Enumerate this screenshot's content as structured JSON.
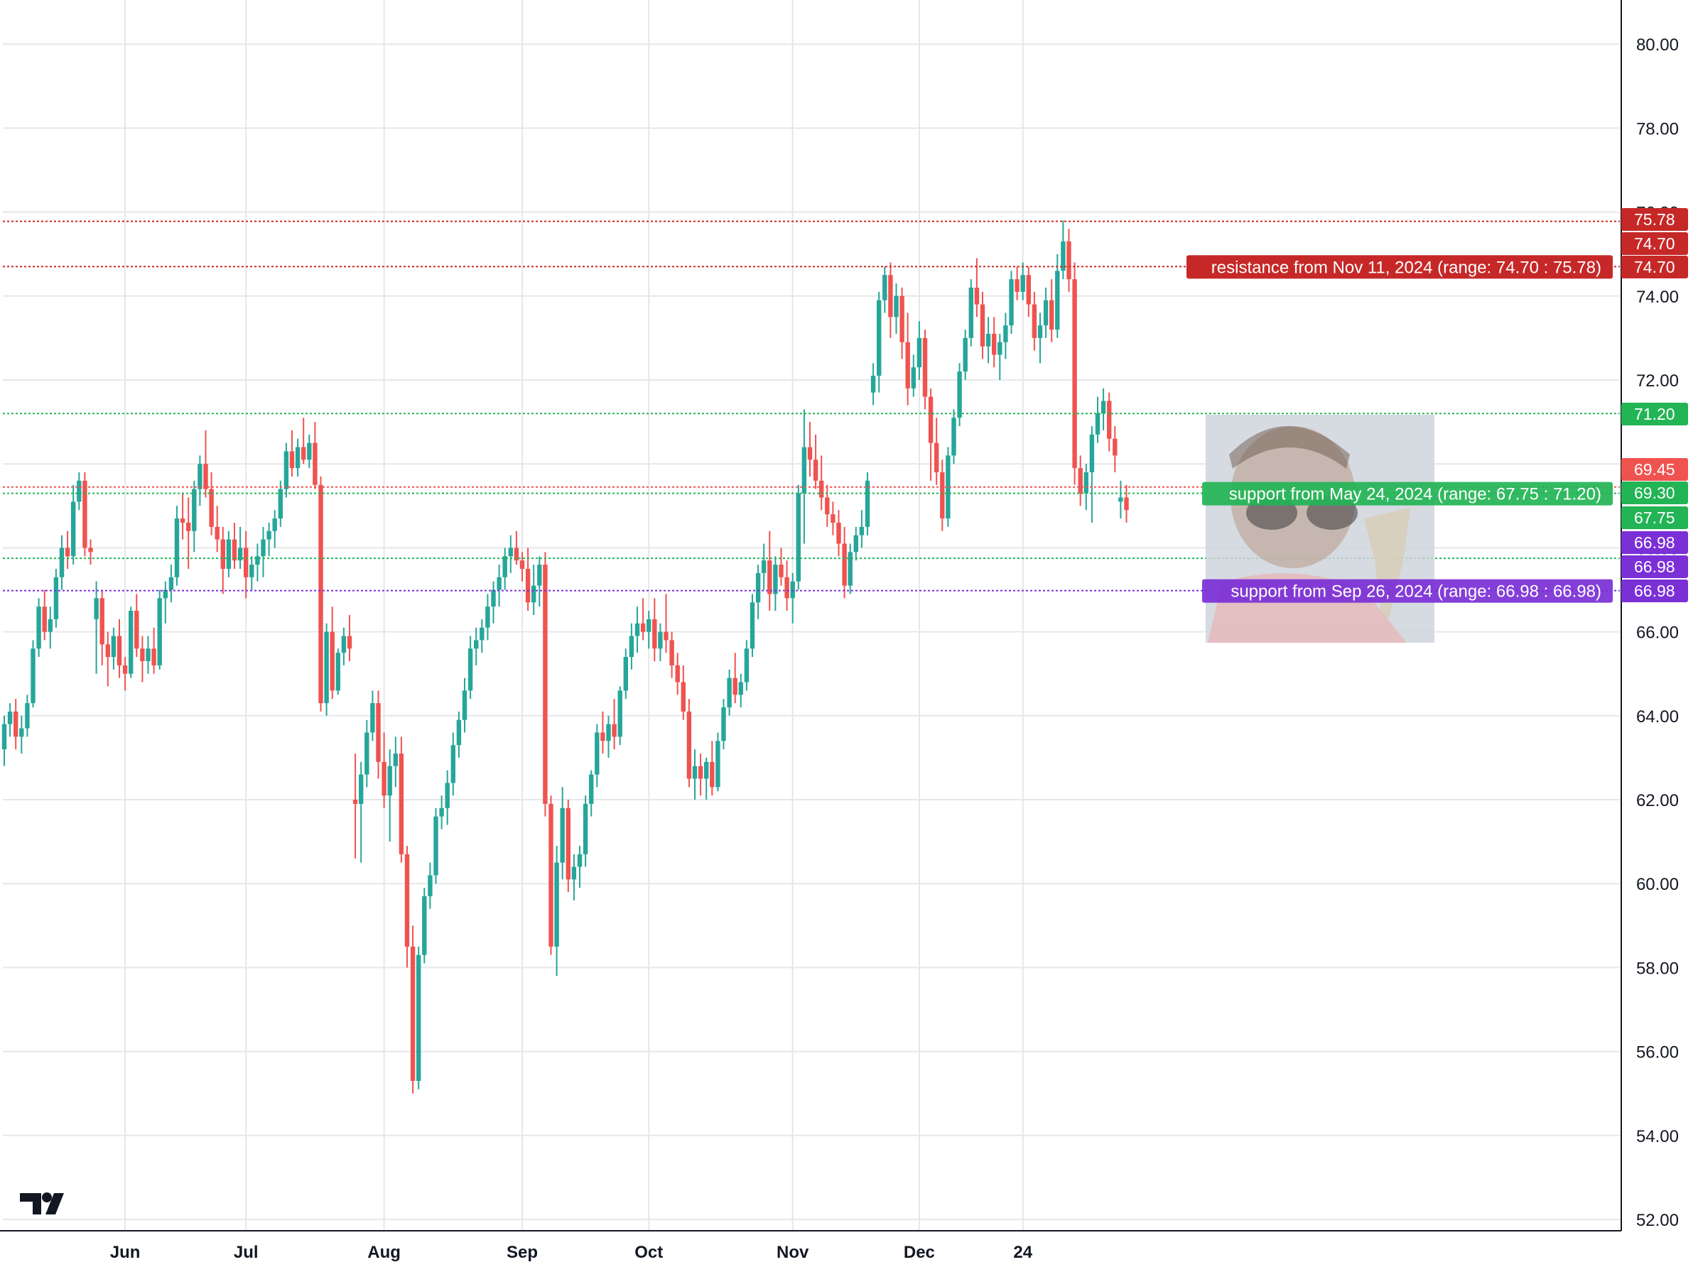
{
  "chart_data": {
    "type": "candlestick",
    "y_axis": {
      "range": [
        51.5,
        81.0
      ],
      "ticks": [
        "52.00",
        "54.00",
        "56.00",
        "58.00",
        "60.00",
        "62.00",
        "64.00",
        "66.00",
        "68.00",
        "70.00",
        "72.00",
        "74.00",
        "76.00",
        "78.00",
        "80.00"
      ],
      "tick_values": [
        52,
        54,
        56,
        58,
        60,
        62,
        64,
        66,
        68,
        70,
        72,
        74,
        76,
        78,
        80
      ]
    },
    "x_axis": {
      "labels": [
        {
          "text": "Jun",
          "index": 21
        },
        {
          "text": "Jul",
          "index": 42
        },
        {
          "text": "Aug",
          "index": 66
        },
        {
          "text": "Sep",
          "index": 90
        },
        {
          "text": "Oct",
          "index": 112
        },
        {
          "text": "Nov",
          "index": 137
        },
        {
          "text": "Dec",
          "index": 159
        },
        {
          "text": "24",
          "index": 177
        }
      ],
      "bar_count": 250
    },
    "grid": true,
    "colors": {
      "up": "#26a69a",
      "down": "#ef5350",
      "resistance": "#c62828",
      "support": "#22b455",
      "support_alt": "#7b2fd6"
    },
    "levels": [
      {
        "price": 75.78,
        "label": "75.78",
        "color": "#c62828",
        "style": "dotted"
      },
      {
        "price": 74.7,
        "label": "74.70",
        "color": "#c62828",
        "style": "dotted"
      },
      {
        "price": 71.2,
        "label": "71.20",
        "color": "#22b455",
        "style": "dotted"
      },
      {
        "price": 69.45,
        "label": "69.45",
        "color": "#ef5350",
        "style": "dotted"
      },
      {
        "price": 69.3,
        "label": "69.30",
        "color": "#22b455",
        "style": "dotted"
      },
      {
        "price": 67.75,
        "label": "67.75",
        "color": "#22b455",
        "style": "dotted"
      },
      {
        "price": 66.98,
        "label": "66.98",
        "color": "#7b2fd6",
        "style": "dotted"
      }
    ],
    "extra_badges": [
      {
        "price": 74.7,
        "label": "74.70",
        "color": "#c62828"
      },
      {
        "price": 68.55,
        "label": "66.98",
        "color": "#7b2fd6"
      },
      {
        "price": 67.98,
        "label": "66.98",
        "color": "#7b2fd6"
      }
    ],
    "zone_labels": [
      {
        "text": "resistance from Nov 11, 2024 (range: 74.70 : 75.78)",
        "price": 74.7,
        "color": "#c62828"
      },
      {
        "text": "support from May 24, 2024 (range: 67.75 : 71.20)",
        "price": 69.3,
        "color": "#22b455"
      },
      {
        "text": "support from Sep 26, 2024 (range: 66.98 : 66.98)",
        "price": 66.98,
        "color": "#7b2fd6"
      }
    ],
    "candles": [
      [
        63.2,
        64.0,
        62.8,
        63.8
      ],
      [
        63.8,
        64.3,
        63.5,
        64.1
      ],
      [
        64.1,
        64.4,
        63.2,
        63.5
      ],
      [
        63.5,
        64.0,
        63.1,
        63.7
      ],
      [
        63.7,
        64.5,
        63.5,
        64.3
      ],
      [
        64.3,
        65.8,
        64.2,
        65.6
      ],
      [
        65.6,
        66.8,
        65.4,
        66.6
      ],
      [
        66.6,
        67.0,
        65.8,
        66.0
      ],
      [
        66.0,
        66.6,
        65.6,
        66.3
      ],
      [
        66.3,
        67.5,
        66.1,
        67.3
      ],
      [
        67.3,
        68.3,
        67.0,
        68.0
      ],
      [
        68.0,
        68.4,
        67.5,
        67.8
      ],
      [
        67.8,
        69.5,
        67.6,
        69.1
      ],
      [
        69.1,
        69.8,
        68.9,
        69.6
      ],
      [
        69.6,
        69.8,
        67.8,
        68.0
      ],
      [
        68.0,
        68.2,
        67.6,
        67.9
      ],
      [
        66.3,
        67.2,
        65.0,
        66.8
      ],
      [
        66.8,
        67.0,
        65.2,
        65.7
      ],
      [
        65.7,
        66.0,
        64.7,
        65.4
      ],
      [
        65.4,
        66.1,
        65.1,
        65.9
      ],
      [
        65.9,
        66.3,
        64.9,
        65.2
      ],
      [
        65.2,
        65.4,
        64.6,
        65.0
      ],
      [
        65.0,
        66.6,
        64.9,
        66.5
      ],
      [
        66.5,
        66.9,
        65.4,
        65.6
      ],
      [
        65.6,
        65.9,
        64.8,
        65.3
      ],
      [
        65.3,
        65.9,
        65.0,
        65.6
      ],
      [
        65.6,
        66.1,
        65.0,
        65.2
      ],
      [
        65.2,
        67.0,
        65.1,
        66.8
      ],
      [
        66.8,
        67.2,
        66.2,
        67.0
      ],
      [
        67.0,
        67.6,
        66.7,
        67.3
      ],
      [
        67.3,
        69.0,
        67.1,
        68.7
      ],
      [
        68.7,
        69.3,
        68.2,
        68.6
      ],
      [
        68.6,
        69.2,
        67.5,
        68.4
      ],
      [
        68.4,
        69.6,
        67.9,
        69.4
      ],
      [
        69.4,
        70.2,
        69.0,
        70.0
      ],
      [
        70.0,
        70.8,
        69.2,
        69.4
      ],
      [
        69.4,
        69.8,
        68.3,
        68.5
      ],
      [
        68.5,
        69.0,
        67.9,
        68.2
      ],
      [
        68.2,
        68.5,
        66.9,
        67.5
      ],
      [
        67.5,
        68.4,
        67.3,
        68.2
      ],
      [
        68.2,
        68.6,
        67.5,
        67.7
      ],
      [
        67.7,
        68.5,
        67.5,
        68.0
      ],
      [
        68.0,
        68.4,
        66.8,
        67.3
      ],
      [
        67.3,
        67.8,
        67.0,
        67.6
      ],
      [
        67.6,
        68.1,
        67.2,
        67.8
      ],
      [
        67.8,
        68.5,
        67.3,
        68.2
      ],
      [
        68.2,
        68.6,
        67.8,
        68.4
      ],
      [
        68.4,
        68.9,
        68.0,
        68.7
      ],
      [
        68.7,
        69.6,
        68.5,
        69.4
      ],
      [
        69.4,
        70.5,
        69.2,
        70.3
      ],
      [
        70.3,
        70.8,
        69.7,
        69.9
      ],
      [
        69.9,
        70.6,
        69.7,
        70.4
      ],
      [
        70.4,
        71.1,
        70.0,
        70.1
      ],
      [
        70.1,
        70.7,
        69.9,
        70.5
      ],
      [
        70.5,
        71.0,
        69.4,
        69.5
      ],
      [
        69.5,
        69.7,
        64.1,
        64.3
      ],
      [
        64.3,
        66.2,
        64.0,
        66.0
      ],
      [
        66.0,
        66.6,
        64.4,
        64.6
      ],
      [
        64.6,
        65.6,
        64.5,
        65.5
      ],
      [
        65.5,
        66.1,
        65.2,
        65.9
      ],
      [
        65.9,
        66.4,
        65.3,
        65.6
      ],
      [
        62.0,
        63.1,
        60.6,
        61.9
      ],
      [
        61.9,
        62.9,
        60.5,
        62.6
      ],
      [
        62.6,
        63.9,
        62.3,
        63.6
      ],
      [
        63.6,
        64.6,
        63.4,
        64.3
      ],
      [
        64.3,
        64.6,
        62.5,
        62.9
      ],
      [
        62.9,
        63.6,
        61.8,
        62.1
      ],
      [
        62.1,
        63.2,
        61.0,
        62.8
      ],
      [
        62.8,
        63.5,
        62.3,
        63.1
      ],
      [
        63.1,
        63.5,
        60.5,
        60.7
      ],
      [
        60.7,
        60.9,
        58.0,
        58.5
      ],
      [
        58.5,
        59.0,
        55.0,
        55.3
      ],
      [
        55.3,
        58.5,
        55.1,
        58.3
      ],
      [
        58.3,
        59.9,
        58.1,
        59.7
      ],
      [
        59.7,
        60.5,
        59.4,
        60.2
      ],
      [
        60.2,
        61.8,
        60.0,
        61.6
      ],
      [
        61.6,
        62.1,
        61.3,
        61.8
      ],
      [
        61.8,
        62.7,
        61.4,
        62.4
      ],
      [
        62.4,
        63.6,
        62.1,
        63.3
      ],
      [
        63.3,
        64.1,
        63.0,
        63.9
      ],
      [
        63.9,
        64.9,
        63.6,
        64.6
      ],
      [
        64.6,
        65.9,
        64.4,
        65.6
      ],
      [
        65.6,
        66.1,
        65.2,
        65.8
      ],
      [
        65.8,
        66.3,
        65.5,
        66.1
      ],
      [
        66.1,
        66.9,
        65.8,
        66.6
      ],
      [
        66.6,
        67.2,
        66.2,
        67.0
      ],
      [
        67.0,
        67.6,
        66.6,
        67.3
      ],
      [
        67.3,
        68.0,
        67.0,
        67.8
      ],
      [
        67.8,
        68.3,
        67.4,
        68.0
      ],
      [
        68.0,
        68.4,
        67.6,
        67.7
      ],
      [
        67.7,
        67.9,
        67.2,
        67.5
      ],
      [
        67.5,
        68.0,
        66.5,
        66.7
      ],
      [
        66.7,
        67.6,
        66.4,
        67.1
      ],
      [
        67.1,
        67.8,
        66.6,
        67.6
      ],
      [
        67.6,
        67.9,
        61.6,
        61.9
      ],
      [
        61.9,
        62.1,
        58.3,
        58.5
      ],
      [
        58.5,
        60.9,
        57.8,
        60.5
      ],
      [
        60.5,
        62.3,
        60.1,
        61.8
      ],
      [
        61.8,
        62.0,
        59.8,
        60.1
      ],
      [
        60.1,
        60.7,
        59.6,
        60.4
      ],
      [
        60.4,
        60.9,
        59.9,
        60.7
      ],
      [
        60.7,
        62.1,
        60.4,
        61.9
      ],
      [
        61.9,
        62.7,
        61.6,
        62.6
      ],
      [
        62.6,
        63.8,
        62.3,
        63.6
      ],
      [
        63.6,
        64.1,
        63.1,
        63.4
      ],
      [
        63.4,
        64.0,
        63.0,
        63.8
      ],
      [
        63.8,
        64.4,
        63.2,
        63.5
      ],
      [
        63.5,
        64.7,
        63.3,
        64.6
      ],
      [
        64.6,
        65.6,
        64.4,
        65.4
      ],
      [
        65.4,
        66.2,
        65.1,
        65.9
      ],
      [
        65.9,
        66.6,
        65.5,
        66.2
      ],
      [
        66.2,
        66.8,
        65.8,
        66.0
      ],
      [
        66.0,
        66.5,
        65.6,
        66.3
      ],
      [
        66.3,
        66.8,
        65.3,
        65.6
      ],
      [
        65.6,
        66.2,
        65.3,
        66.0
      ],
      [
        66.0,
        66.9,
        65.5,
        65.8
      ],
      [
        65.8,
        66.0,
        64.9,
        65.2
      ],
      [
        65.2,
        65.5,
        64.5,
        64.8
      ],
      [
        64.8,
        65.2,
        63.9,
        64.1
      ],
      [
        64.1,
        64.4,
        62.3,
        62.5
      ],
      [
        62.5,
        63.2,
        62.0,
        62.8
      ],
      [
        62.8,
        63.1,
        62.1,
        62.5
      ],
      [
        62.5,
        63.0,
        62.0,
        62.9
      ],
      [
        62.9,
        63.4,
        62.1,
        62.3
      ],
      [
        62.3,
        63.6,
        62.2,
        63.4
      ],
      [
        63.4,
        64.4,
        63.2,
        64.2
      ],
      [
        64.2,
        65.1,
        64.0,
        64.9
      ],
      [
        64.9,
        65.5,
        64.3,
        64.5
      ],
      [
        64.5,
        65.0,
        64.2,
        64.8
      ],
      [
        64.8,
        65.8,
        64.6,
        65.6
      ],
      [
        65.6,
        66.9,
        65.4,
        66.7
      ],
      [
        66.7,
        67.6,
        66.3,
        67.4
      ],
      [
        67.4,
        68.1,
        67.0,
        67.7
      ],
      [
        67.7,
        68.4,
        66.5,
        66.9
      ],
      [
        66.9,
        67.8,
        66.5,
        67.6
      ],
      [
        67.6,
        68.0,
        67.1,
        67.3
      ],
      [
        67.3,
        67.7,
        66.5,
        66.8
      ],
      [
        66.8,
        67.4,
        66.2,
        67.2
      ],
      [
        67.2,
        69.5,
        67.0,
        69.3
      ],
      [
        69.3,
        71.3,
        68.1,
        70.4
      ],
      [
        70.4,
        71.0,
        69.7,
        70.1
      ],
      [
        70.1,
        70.7,
        69.4,
        69.6
      ],
      [
        69.6,
        70.2,
        68.9,
        69.2
      ],
      [
        69.2,
        69.5,
        68.5,
        68.8
      ],
      [
        68.8,
        69.1,
        68.3,
        68.6
      ],
      [
        68.6,
        68.9,
        67.8,
        68.1
      ],
      [
        68.1,
        68.5,
        66.8,
        67.1
      ],
      [
        67.1,
        68.1,
        66.9,
        67.9
      ],
      [
        67.9,
        68.5,
        67.7,
        68.3
      ],
      [
        68.3,
        68.9,
        68.0,
        68.5
      ],
      [
        68.5,
        69.8,
        68.3,
        69.6
      ],
      [
        71.7,
        72.4,
        71.4,
        72.1
      ],
      [
        72.1,
        74.1,
        71.7,
        73.9
      ],
      [
        73.9,
        74.7,
        73.6,
        74.5
      ],
      [
        74.5,
        74.8,
        73.0,
        73.5
      ],
      [
        73.5,
        74.3,
        73.1,
        74.0
      ],
      [
        74.0,
        74.2,
        72.5,
        72.9
      ],
      [
        72.9,
        73.6,
        71.4,
        71.8
      ],
      [
        71.8,
        72.6,
        71.6,
        72.3
      ],
      [
        72.3,
        73.4,
        72.0,
        73.0
      ],
      [
        73.0,
        73.2,
        71.3,
        71.6
      ],
      [
        71.6,
        71.8,
        69.6,
        70.5
      ],
      [
        70.5,
        71.1,
        69.5,
        69.8
      ],
      [
        69.8,
        70.1,
        68.4,
        68.7
      ],
      [
        68.7,
        70.4,
        68.5,
        70.2
      ],
      [
        70.2,
        71.3,
        70.0,
        71.1
      ],
      [
        71.1,
        72.4,
        70.9,
        72.2
      ],
      [
        72.2,
        73.2,
        72.0,
        73.0
      ],
      [
        73.0,
        74.4,
        72.8,
        74.2
      ],
      [
        74.2,
        74.9,
        73.5,
        73.8
      ],
      [
        73.8,
        74.1,
        72.5,
        72.8
      ],
      [
        72.8,
        73.5,
        72.4,
        73.1
      ],
      [
        73.1,
        73.5,
        72.3,
        72.6
      ],
      [
        72.6,
        73.1,
        72.0,
        72.9
      ],
      [
        72.9,
        73.6,
        72.5,
        73.3
      ],
      [
        73.3,
        74.6,
        73.1,
        74.4
      ],
      [
        74.4,
        74.7,
        73.9,
        74.1
      ],
      [
        74.1,
        74.8,
        73.9,
        74.5
      ],
      [
        74.5,
        74.7,
        73.5,
        73.8
      ],
      [
        73.8,
        74.1,
        72.7,
        73.0
      ],
      [
        73.0,
        73.6,
        72.4,
        73.3
      ],
      [
        73.3,
        74.2,
        73.0,
        73.9
      ],
      [
        73.9,
        74.4,
        72.9,
        73.2
      ],
      [
        73.2,
        75.0,
        73.0,
        74.6
      ],
      [
        74.6,
        75.8,
        74.4,
        75.3
      ],
      [
        75.3,
        75.6,
        74.1,
        74.4
      ],
      [
        74.4,
        74.8,
        69.5,
        69.9
      ],
      [
        69.9,
        70.2,
        69.0,
        69.3
      ],
      [
        69.3,
        70.0,
        68.9,
        69.8
      ],
      [
        69.8,
        70.9,
        68.6,
        70.7
      ],
      [
        70.7,
        71.6,
        70.5,
        71.2
      ],
      [
        71.2,
        71.8,
        70.8,
        71.5
      ],
      [
        71.5,
        71.7,
        70.3,
        70.6
      ],
      [
        70.6,
        70.9,
        69.8,
        70.2
      ],
      [
        69.1,
        69.6,
        68.7,
        69.2
      ],
      [
        69.2,
        69.5,
        68.6,
        68.9
      ]
    ]
  }
}
